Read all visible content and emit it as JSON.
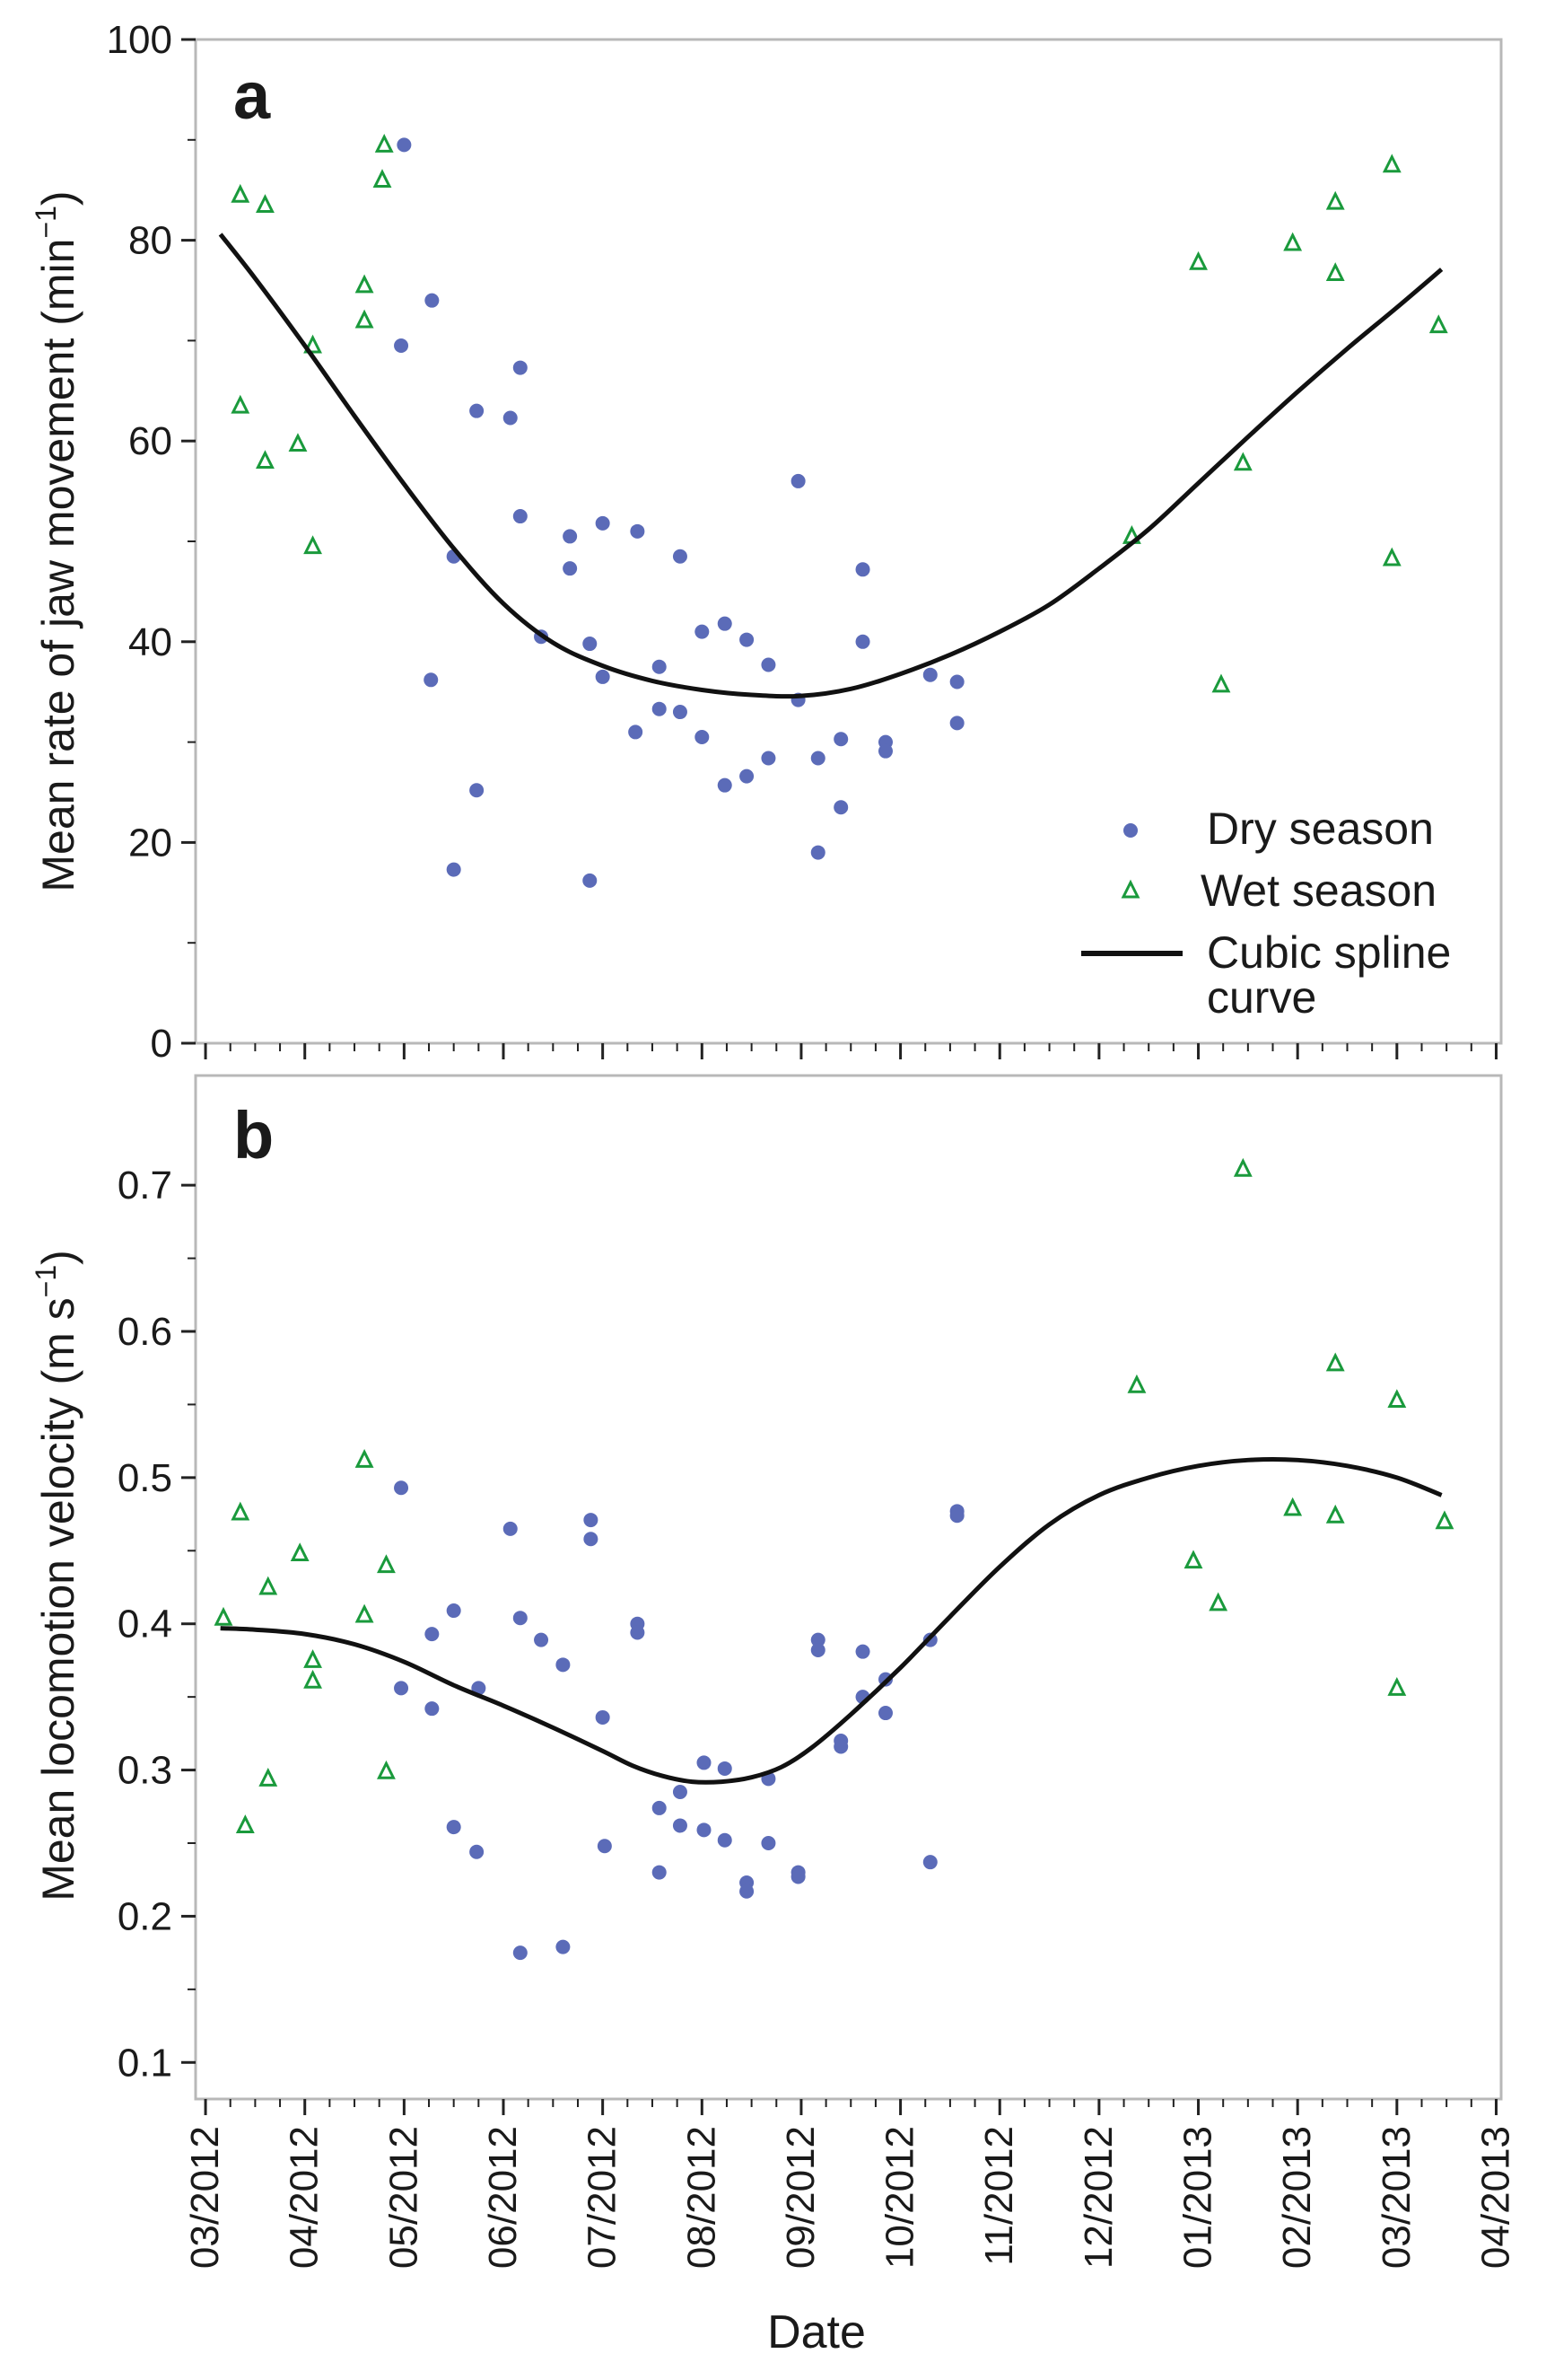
{
  "colors": {
    "dry": "#5b6bb8",
    "wet": "#1a9a3c",
    "curve": "#111111",
    "frame": "#b8b8b8"
  },
  "x_axis": {
    "label": "Date",
    "ticks": [
      "03/2012",
      "04/2012",
      "05/2012",
      "06/2012",
      "07/2012",
      "08/2012",
      "09/2012",
      "10/2012",
      "11/2012",
      "12/2012",
      "01/2013",
      "02/2013",
      "03/2013",
      "04/2013"
    ],
    "range": [
      -0.1,
      13.05
    ]
  },
  "legend": {
    "position": "bottom-right of panel a",
    "dry_label": "Dry season",
    "wet_label": "Wet season",
    "curve_label_line1": "Cubic spline",
    "curve_label_line2": "curve"
  },
  "chart_data": [
    {
      "type": "scatter",
      "panel_label": "a",
      "ylabel_main": "Mean rate of jaw movement (min",
      "ylabel_sup": "−1",
      "ylabel_end": ")",
      "ylim": [
        0,
        100
      ],
      "yticks": [
        "0",
        "20",
        "40",
        "60",
        "80",
        "100"
      ],
      "x_units": "months since 03/2012",
      "series": [
        {
          "name": "Dry season",
          "points": [
            [
              2.0,
              89.5
            ],
            [
              1.97,
              69.5
            ],
            [
              2.28,
              74
            ],
            [
              2.27,
              36.2
            ],
            [
              2.5,
              48.5
            ],
            [
              2.5,
              17.3
            ],
            [
              2.73,
              63
            ],
            [
              2.73,
              25.2
            ],
            [
              3.07,
              62.3
            ],
            [
              3.17,
              67.3
            ],
            [
              3.17,
              52.5
            ],
            [
              3.38,
              40.5
            ],
            [
              3.67,
              50.5
            ],
            [
              3.67,
              47.3
            ],
            [
              3.87,
              39.8
            ],
            [
              3.87,
              16.2
            ],
            [
              4.0,
              51.8
            ],
            [
              4.0,
              36.5
            ],
            [
              4.35,
              51
            ],
            [
              4.33,
              31
            ],
            [
              4.57,
              37.5
            ],
            [
              4.57,
              33.3
            ],
            [
              4.78,
              48.5
            ],
            [
              4.78,
              33
            ],
            [
              5.0,
              41
            ],
            [
              5.0,
              30.5
            ],
            [
              5.23,
              41.8
            ],
            [
              5.23,
              25.7
            ],
            [
              5.45,
              40.2
            ],
            [
              5.45,
              26.6
            ],
            [
              5.67,
              37.7
            ],
            [
              5.67,
              28.4
            ],
            [
              5.97,
              56
            ],
            [
              5.97,
              34.2
            ],
            [
              6.17,
              28.4
            ],
            [
              6.17,
              19
            ],
            [
              6.4,
              30.3
            ],
            [
              6.4,
              23.5
            ],
            [
              6.62,
              47.2
            ],
            [
              6.62,
              40
            ],
            [
              6.85,
              30
            ],
            [
              6.85,
              29.1
            ],
            [
              7.3,
              36.7
            ],
            [
              7.57,
              36
            ],
            [
              7.57,
              31.9
            ]
          ]
        },
        {
          "name": "Wet season",
          "points": [
            [
              0.35,
              84.5
            ],
            [
              0.35,
              63.5
            ],
            [
              0.6,
              83.5
            ],
            [
              0.6,
              58
            ],
            [
              0.93,
              59.7
            ],
            [
              1.08,
              69.5
            ],
            [
              1.08,
              49.5
            ],
            [
              1.6,
              75.5
            ],
            [
              1.6,
              72
            ],
            [
              1.8,
              89.5
            ],
            [
              1.78,
              86
            ],
            [
              9.33,
              50.5
            ],
            [
              10.0,
              77.8
            ],
            [
              10.23,
              35.7
            ],
            [
              10.45,
              57.8
            ],
            [
              10.95,
              79.7
            ],
            [
              11.38,
              83.8
            ],
            [
              11.38,
              76.7
            ],
            [
              11.95,
              87.5
            ],
            [
              11.95,
              48.3
            ],
            [
              12.42,
              71.5
            ]
          ]
        }
      ],
      "curve": [
        [
          0.15,
          80.6
        ],
        [
          0.5,
          76.2
        ],
        [
          1.0,
          69.5
        ],
        [
          1.5,
          62.5
        ],
        [
          2.0,
          55.7
        ],
        [
          2.5,
          49.3
        ],
        [
          3.0,
          43.8
        ],
        [
          3.5,
          39.9
        ],
        [
          4.0,
          37.6
        ],
        [
          4.5,
          36.1
        ],
        [
          5.0,
          35.2
        ],
        [
          5.5,
          34.7
        ],
        [
          6.0,
          34.6
        ],
        [
          6.5,
          35.3
        ],
        [
          7.0,
          36.8
        ],
        [
          7.5,
          38.7
        ],
        [
          8.0,
          41.0
        ],
        [
          8.5,
          43.7
        ],
        [
          9.0,
          47.3
        ],
        [
          9.5,
          51.2
        ],
        [
          10.0,
          55.8
        ],
        [
          10.5,
          60.4
        ],
        [
          11.0,
          64.9
        ],
        [
          11.5,
          69.2
        ],
        [
          12.0,
          73.3
        ],
        [
          12.45,
          77.1
        ]
      ]
    },
    {
      "type": "scatter",
      "panel_label": "b",
      "ylabel_main": "Mean locomotion velocity (m s",
      "ylabel_sup": "−1",
      "ylabel_end": ")",
      "ylim": [
        0.075,
        0.775
      ],
      "yticks": [
        "0.1",
        "0.2",
        "0.3",
        "0.4",
        "0.5",
        "0.6",
        "0.7"
      ],
      "x_units": "months since 03/2012",
      "series": [
        {
          "name": "Dry season",
          "points": [
            [
              1.97,
              0.493
            ],
            [
              1.97,
              0.356
            ],
            [
              2.28,
              0.393
            ],
            [
              2.28,
              0.342
            ],
            [
              2.5,
              0.409
            ],
            [
              2.5,
              0.261
            ],
            [
              2.75,
              0.356
            ],
            [
              2.73,
              0.244
            ],
            [
              3.07,
              0.465
            ],
            [
              3.17,
              0.404
            ],
            [
              3.17,
              0.175
            ],
            [
              3.38,
              0.389
            ],
            [
              3.6,
              0.372
            ],
            [
              3.6,
              0.179
            ],
            [
              3.88,
              0.471
            ],
            [
              3.88,
              0.458
            ],
            [
              4.0,
              0.336
            ],
            [
              4.02,
              0.248
            ],
            [
              4.35,
              0.4
            ],
            [
              4.35,
              0.394
            ],
            [
              4.57,
              0.274
            ],
            [
              4.57,
              0.23
            ],
            [
              4.78,
              0.285
            ],
            [
              4.78,
              0.262
            ],
            [
              5.02,
              0.305
            ],
            [
              5.02,
              0.259
            ],
            [
              5.23,
              0.301
            ],
            [
              5.23,
              0.252
            ],
            [
              5.45,
              0.223
            ],
            [
              5.45,
              0.217
            ],
            [
              5.67,
              0.294
            ],
            [
              5.67,
              0.25
            ],
            [
              5.97,
              0.23
            ],
            [
              5.97,
              0.227
            ],
            [
              6.17,
              0.389
            ],
            [
              6.17,
              0.382
            ],
            [
              6.4,
              0.32
            ],
            [
              6.4,
              0.316
            ],
            [
              6.62,
              0.381
            ],
            [
              6.62,
              0.35
            ],
            [
              6.85,
              0.362
            ],
            [
              6.85,
              0.339
            ],
            [
              7.3,
              0.389
            ],
            [
              7.3,
              0.237
            ],
            [
              7.57,
              0.477
            ],
            [
              7.57,
              0.474
            ]
          ]
        },
        {
          "name": "Wet season",
          "points": [
            [
              0.18,
              0.404
            ],
            [
              0.35,
              0.476
            ],
            [
              0.4,
              0.262
            ],
            [
              0.63,
              0.425
            ],
            [
              0.63,
              0.294
            ],
            [
              0.95,
              0.448
            ],
            [
              1.08,
              0.375
            ],
            [
              1.08,
              0.361
            ],
            [
              1.6,
              0.512
            ],
            [
              1.6,
              0.406
            ],
            [
              1.82,
              0.44
            ],
            [
              1.82,
              0.299
            ],
            [
              9.38,
              0.563
            ],
            [
              9.95,
              0.443
            ],
            [
              10.2,
              0.414
            ],
            [
              10.45,
              0.711
            ],
            [
              10.95,
              0.479
            ],
            [
              11.38,
              0.578
            ],
            [
              11.38,
              0.474
            ],
            [
              12.0,
              0.553
            ],
            [
              12.0,
              0.356
            ],
            [
              12.48,
              0.47
            ]
          ]
        }
      ],
      "curve": [
        [
          0.15,
          0.397
        ],
        [
          0.5,
          0.396
        ],
        [
          1.0,
          0.393
        ],
        [
          1.5,
          0.386
        ],
        [
          2.0,
          0.374
        ],
        [
          2.5,
          0.358
        ],
        [
          3.0,
          0.344
        ],
        [
          3.5,
          0.329
        ],
        [
          4.0,
          0.313
        ],
        [
          4.3,
          0.303
        ],
        [
          4.6,
          0.296
        ],
        [
          4.9,
          0.292
        ],
        [
          5.2,
          0.292
        ],
        [
          5.5,
          0.295
        ],
        [
          5.8,
          0.302
        ],
        [
          6.1,
          0.315
        ],
        [
          6.5,
          0.338
        ],
        [
          7.0,
          0.37
        ],
        [
          7.5,
          0.405
        ],
        [
          8.0,
          0.439
        ],
        [
          8.5,
          0.468
        ],
        [
          9.0,
          0.488
        ],
        [
          9.5,
          0.5
        ],
        [
          10.0,
          0.508
        ],
        [
          10.5,
          0.512
        ],
        [
          11.0,
          0.512
        ],
        [
          11.5,
          0.508
        ],
        [
          12.0,
          0.5
        ],
        [
          12.45,
          0.488
        ]
      ]
    }
  ]
}
